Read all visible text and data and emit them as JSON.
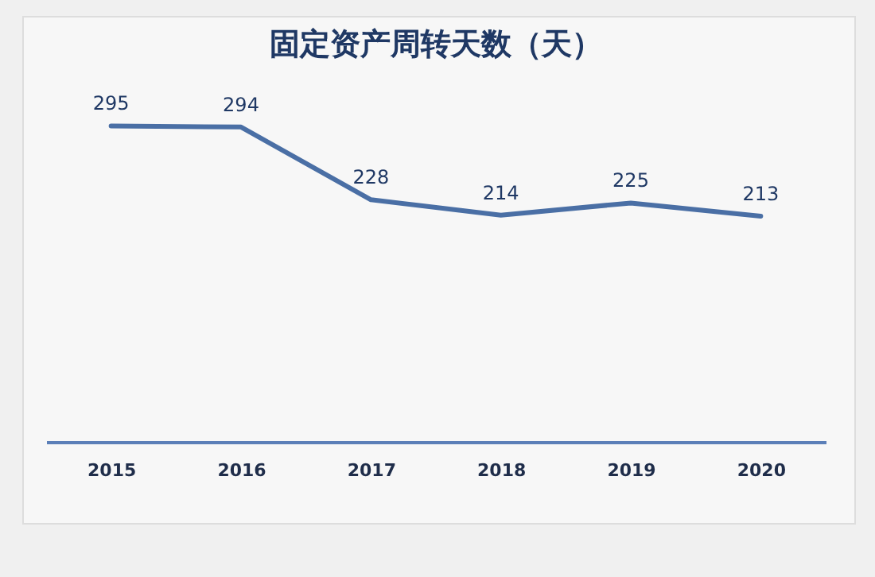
{
  "chart_data": {
    "type": "line",
    "title": "固定资产周转天数（天）",
    "categories": [
      "2015",
      "2016",
      "2017",
      "2018",
      "2019",
      "2020"
    ],
    "series": [
      {
        "color": "#4a6fa5",
        "values": [
          295,
          294,
          228,
          214,
          225,
          213
        ]
      }
    ],
    "data_labels": true,
    "marker": "none"
  }
}
